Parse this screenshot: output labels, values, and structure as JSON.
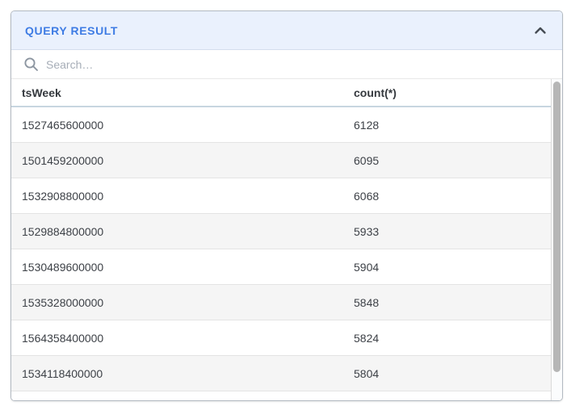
{
  "panel": {
    "title": "QUERY RESULT",
    "collapse_icon": "chevron-up",
    "accent_color": "#3e7ce4",
    "header_bg": "#eaf1fd"
  },
  "search": {
    "placeholder": "Search…"
  },
  "table": {
    "columns": [
      "tsWeek",
      "count(*)"
    ],
    "rows": [
      {
        "tsWeek": "1527465600000",
        "count": "6128"
      },
      {
        "tsWeek": "1501459200000",
        "count": "6095"
      },
      {
        "tsWeek": "1532908800000",
        "count": "6068"
      },
      {
        "tsWeek": "1529884800000",
        "count": "5933"
      },
      {
        "tsWeek": "1530489600000",
        "count": "5904"
      },
      {
        "tsWeek": "1535328000000",
        "count": "5848"
      },
      {
        "tsWeek": "1564358400000",
        "count": "5824"
      },
      {
        "tsWeek": "1534118400000",
        "count": "5804"
      }
    ]
  }
}
